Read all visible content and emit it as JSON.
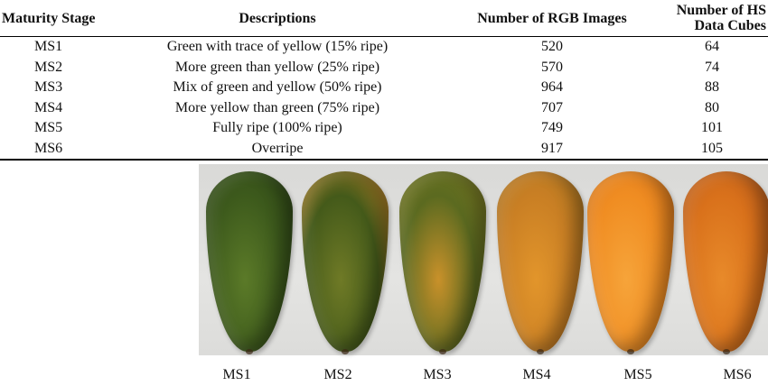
{
  "table": {
    "headers": {
      "stage": "Maturity Stage",
      "desc": "Descriptions",
      "rgb": "Number of RGB Images",
      "hs_line1": "Number of HS",
      "hs_line2": "Data Cubes"
    },
    "rows": [
      {
        "stage": "MS1",
        "desc": "Green with trace of yellow (15% ripe)",
        "rgb": "520",
        "hs": "64"
      },
      {
        "stage": "MS2",
        "desc": "More green than yellow (25% ripe)",
        "rgb": "570",
        "hs": "74"
      },
      {
        "stage": "MS3",
        "desc": "Mix of green and yellow (50% ripe)",
        "rgb": "964",
        "hs": "88"
      },
      {
        "stage": "MS4",
        "desc": "More yellow than green (75% ripe)",
        "rgb": "707",
        "hs": "80"
      },
      {
        "stage": "MS5",
        "desc": "Fully ripe (100% ripe)",
        "rgb": "749",
        "hs": "101"
      },
      {
        "stage": "MS6",
        "desc": "Overripe",
        "rgb": "917",
        "hs": "105"
      }
    ]
  },
  "photo": {
    "fruits": [
      {
        "label": "MS1",
        "colors": [
          "#3d5a1c",
          "#5b7a28",
          "#2c4416"
        ]
      },
      {
        "label": "MS2",
        "colors": [
          "#445a1a",
          "#6f7a26",
          "#d08a2a"
        ]
      },
      {
        "label": "MS3",
        "colors": [
          "#5b6a20",
          "#c9912a",
          "#7f7a22"
        ]
      },
      {
        "label": "MS4",
        "colors": [
          "#c97f24",
          "#e2952b",
          "#a9741f"
        ]
      },
      {
        "label": "MS5",
        "colors": [
          "#f08d22",
          "#f6a43a",
          "#d8751a"
        ]
      },
      {
        "label": "MS6",
        "colors": [
          "#d9711b",
          "#e88a2a",
          "#b5581a"
        ]
      }
    ]
  }
}
